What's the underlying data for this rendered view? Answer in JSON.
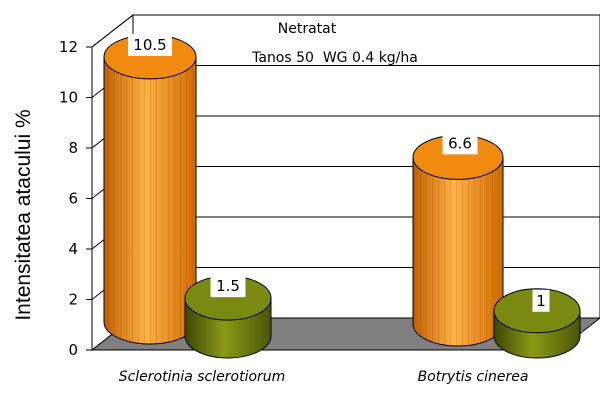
{
  "chart_data": {
    "type": "bar",
    "style": "3d-cylinder",
    "categories": [
      "Sclerotinia sclerotiorum",
      "Botrytis cinerea"
    ],
    "series": [
      {
        "name": "Netratat",
        "values": [
          10.5,
          6.6
        ],
        "color": "#f59a1c"
      },
      {
        "name": "Tanos 50  WG 0.4 kg/ha",
        "values": [
          1.5,
          1
        ],
        "color": "#6b7a0c"
      }
    ],
    "ylabel": "Intensitatea atacului %",
    "xlabel": "",
    "yticks": [
      0,
      2,
      4,
      6,
      8,
      10,
      12
    ],
    "ylim": [
      0,
      12
    ],
    "grid": true,
    "legend": "top-center",
    "data_labels": [
      "10.5",
      "1.5",
      "6.6",
      "1"
    ]
  }
}
